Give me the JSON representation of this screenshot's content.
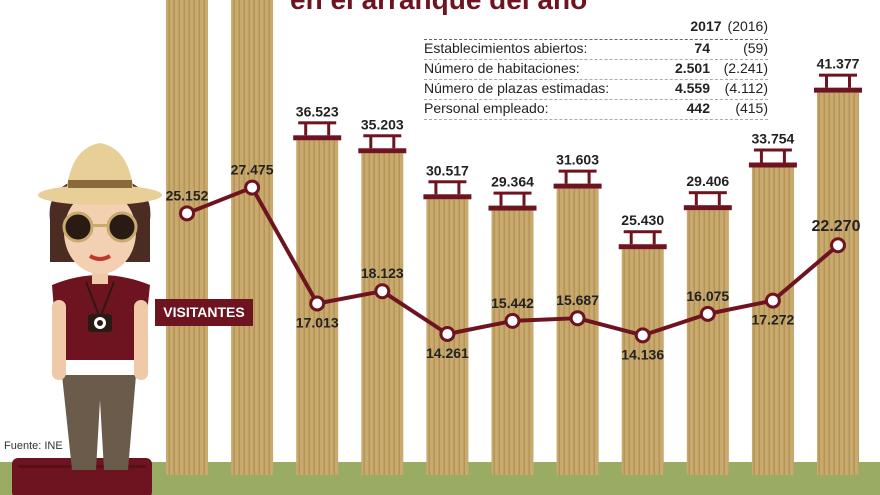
{
  "title": "en el arranque del año",
  "source": "Fuente: INE",
  "stats_table": {
    "header_current": "2017",
    "header_previous": "(2016)",
    "rows": [
      {
        "label": "Establecimientos abiertos:",
        "current": "74",
        "previous": "(59)"
      },
      {
        "label": "Número de habitaciones:",
        "current": "2.501",
        "previous": "(2.241)"
      },
      {
        "label": "Número de plazas estimadas:",
        "current": "4.559",
        "previous": "(4.112)"
      },
      {
        "label": "Personal empleado:",
        "current": "442",
        "previous": "(415)"
      }
    ]
  },
  "visitors_label": "VISITANTES",
  "colors": {
    "column": "#c8a96e",
    "column_stripe": "#b59456",
    "line": "#6e1420",
    "badge": "#6e1420",
    "ground": "#9aab63"
  },
  "chart_data": {
    "type": "bar",
    "series": [
      {
        "type": "bar",
        "values": [
          null,
          null,
          36523,
          35203,
          30517,
          29364,
          31603,
          25430,
          29406,
          33754,
          41377
        ],
        "labels": [
          "",
          "",
          "36.523",
          "35.203",
          "30.517",
          "29.364",
          "31.603",
          "25.430",
          "29.406",
          "33.754",
          "41.377"
        ]
      },
      {
        "name": "VISITANTES",
        "type": "line",
        "values": [
          25152,
          27475,
          17013,
          18123,
          14261,
          15442,
          15687,
          14136,
          16075,
          17272,
          22270
        ],
        "labels": [
          "25.152",
          "27.475",
          "17.013",
          "18.123",
          "14.261",
          "15.442",
          "15.687",
          "14.136",
          "16.075",
          "17.272",
          "22.270"
        ]
      }
    ]
  }
}
